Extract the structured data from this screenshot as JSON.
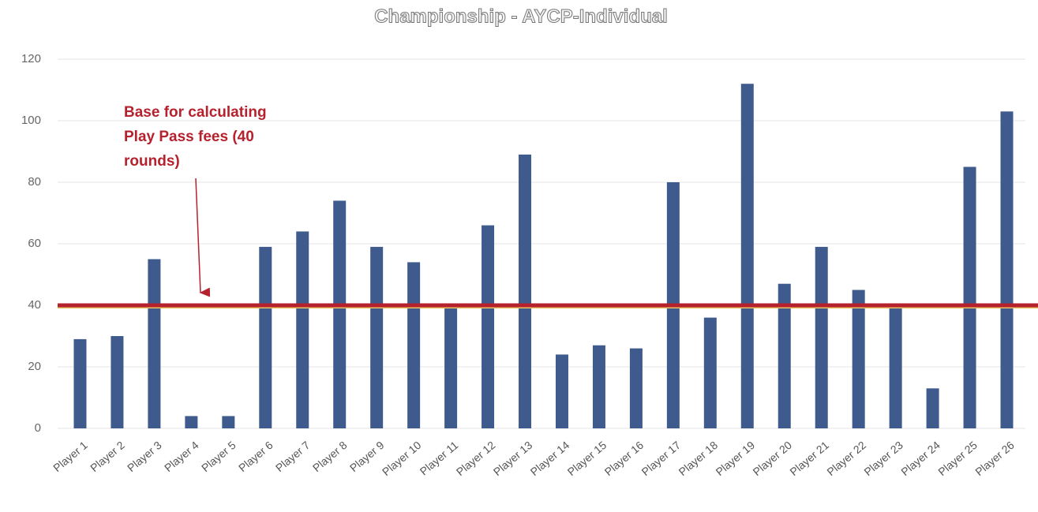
{
  "chart_data": {
    "type": "bar",
    "title": "Championship - AYCP-Individual",
    "categories": [
      "Player 1",
      "Player 2",
      "Player 3",
      "Player 4",
      "Player 5",
      "Player 6",
      "Player 7",
      "Player 8",
      "Player 9",
      "Player 10",
      "Player 11",
      "Player 12",
      "Player 13",
      "Player 14",
      "Player 15",
      "Player 16",
      "Player 17",
      "Player 18",
      "Player 19",
      "Player 20",
      "Player 21",
      "Player 22",
      "Player 23",
      "Player 24",
      "Player 25",
      "Player 26"
    ],
    "values": [
      29,
      30,
      55,
      4,
      4,
      59,
      64,
      74,
      59,
      54,
      40,
      66,
      89,
      24,
      27,
      26,
      80,
      36,
      112,
      47,
      59,
      45,
      39,
      13,
      85,
      103
    ],
    "color": "#3f5b8e",
    "ylim": [
      0,
      120
    ],
    "yticks": [
      0,
      20,
      40,
      60,
      80,
      100,
      120
    ],
    "grid": true,
    "reference_line": {
      "value": 40,
      "color": "#b5222e"
    },
    "annotation": [
      "Base for calculating",
      "Play Pass fees (40",
      "rounds)"
    ]
  }
}
